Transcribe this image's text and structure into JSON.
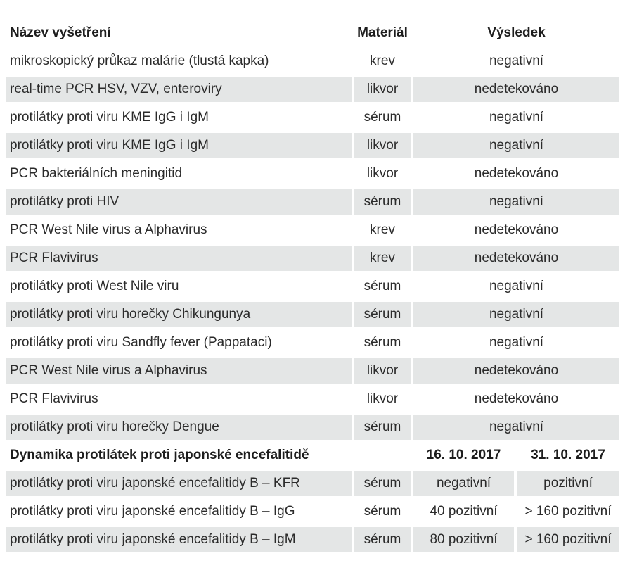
{
  "headers": {
    "name": "Název vyšetření",
    "material": "Materiál",
    "result": "Výsledek"
  },
  "rows": [
    {
      "name": "mikroskopický průkaz malárie (tlustá kapka)",
      "material": "krev",
      "result": "negativní"
    },
    {
      "name": "real-time PCR HSV, VZV, enteroviry",
      "material": "likvor",
      "result": "nedetekováno"
    },
    {
      "name": "protilátky proti viru KME IgG i IgM",
      "material": "sérum",
      "result": "negativní"
    },
    {
      "name": "protilátky proti viru KME IgG i IgM",
      "material": "likvor",
      "result": "negativní"
    },
    {
      "name": "PCR bakteriálních meningitid",
      "material": "likvor",
      "result": "nedetekováno"
    },
    {
      "name": "protilátky proti HIV",
      "material": "sérum",
      "result": "negativní"
    },
    {
      "name": "PCR West Nile virus a Alphavirus",
      "material": "krev",
      "result": "nedetekováno"
    },
    {
      "name": "PCR Flavivirus",
      "material": "krev",
      "result": "nedetekováno"
    },
    {
      "name": "protilátky proti West Nile viru",
      "material": "sérum",
      "result": "negativní"
    },
    {
      "name": "protilátky proti viru horečky Chikungunya",
      "material": "sérum",
      "result": "negativní"
    },
    {
      "name": "protilátky proti viru Sandfly fever (Pappataci)",
      "material": "sérum",
      "result": "negativní"
    },
    {
      "name": "PCR West Nile virus a Alphavirus",
      "material": "likvor",
      "result": "nedetekováno"
    },
    {
      "name": "PCR Flavivirus",
      "material": "likvor",
      "result": "nedetekováno"
    },
    {
      "name": "protilátky proti viru horečky Dengue",
      "material": "sérum",
      "result": "negativní"
    }
  ],
  "dynamics": {
    "title": "Dynamika protilátek proti japonské encefalitidě",
    "date1": "16. 10. 2017",
    "date2": "31. 10. 2017",
    "rows": [
      {
        "name": "protilátky proti viru japonské encefalitidy B – KFR",
        "material": "sérum",
        "r1": "negativní",
        "r2": "pozitivní"
      },
      {
        "name": "protilátky proti viru japonské encefalitidy B – IgG",
        "material": "sérum",
        "r1": "40 pozitivní",
        "r2": "> 160 pozitivní"
      },
      {
        "name": "protilátky proti viru japonské encefalitidy B – IgM",
        "material": "sérum",
        "r1": "80 pozitivní",
        "r2": "> 160 pozitivní"
      }
    ]
  }
}
